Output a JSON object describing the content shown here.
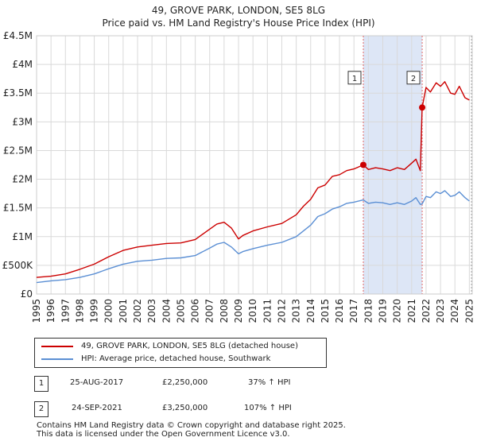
{
  "header": {
    "title_line1": "49, GROVE PARK, LONDON, SE5 8LG",
    "title_line2": "Price paid vs. HM Land Registry's House Price Index (HPI)"
  },
  "colors": {
    "property": "#cc0000",
    "hpi": "#5b8fd4",
    "shade": "#dde6f6",
    "sale_marker": "#cc0000"
  },
  "chart_data": {
    "type": "line",
    "title": "49, GROVE PARK, LONDON, SE5 8LG — Price paid vs. HM Land Registry's House Price Index (HPI)",
    "xlabel": "",
    "ylabel": "",
    "xlim": [
      1995,
      2025.2
    ],
    "ylim": [
      0,
      4500000
    ],
    "grid": true,
    "x_ticks": [
      "1995",
      "1996",
      "1997",
      "1998",
      "1999",
      "2000",
      "2001",
      "2002",
      "2003",
      "2004",
      "2005",
      "2006",
      "2007",
      "2008",
      "2009",
      "2010",
      "2011",
      "2012",
      "2013",
      "2014",
      "2015",
      "2016",
      "2017",
      "2018",
      "2019",
      "2020",
      "2021",
      "2022",
      "2023",
      "2024",
      "2025"
    ],
    "y_ticks": [
      {
        "value": 0,
        "label": "£0"
      },
      {
        "value": 500000,
        "label": "£500K"
      },
      {
        "value": 1000000,
        "label": "£1M"
      },
      {
        "value": 1500000,
        "label": "£1.5M"
      },
      {
        "value": 2000000,
        "label": "£2M"
      },
      {
        "value": 2500000,
        "label": "£2.5M"
      },
      {
        "value": 3000000,
        "label": "£3M"
      },
      {
        "value": 3500000,
        "label": "£3.5M"
      },
      {
        "value": 4000000,
        "label": "£4M"
      },
      {
        "value": 4500000,
        "label": "£4.5M"
      }
    ],
    "shaded_region": {
      "x_start": 2017.65,
      "x_end": 2021.73
    },
    "series": [
      {
        "name": "49, GROVE PARK, LONDON, SE5 8LG (detached house)",
        "x": [
          1995,
          1996,
          1997,
          1998,
          1999,
          2000,
          2001,
          2002,
          2003,
          2004,
          2005,
          2006,
          2007,
          2007.5,
          2008,
          2008.5,
          2009,
          2009.3,
          2010,
          2011,
          2012,
          2013,
          2013.5,
          2014,
          2014.5,
          2015,
          2015.5,
          2016,
          2016.5,
          2017,
          2017.65,
          2018,
          2018.5,
          2019,
          2019.5,
          2020,
          2020.5,
          2021,
          2021.3,
          2021.6,
          2021.73,
          2022,
          2022.3,
          2022.7,
          2023,
          2023.3,
          2023.7,
          2024,
          2024.3,
          2024.7,
          2025
        ],
        "values": [
          290000,
          310000,
          350000,
          430000,
          520000,
          650000,
          760000,
          820000,
          850000,
          880000,
          890000,
          950000,
          1130000,
          1220000,
          1250000,
          1150000,
          960000,
          1020000,
          1100000,
          1170000,
          1230000,
          1380000,
          1530000,
          1650000,
          1850000,
          1900000,
          2050000,
          2080000,
          2150000,
          2180000,
          2250000,
          2170000,
          2200000,
          2180000,
          2150000,
          2200000,
          2170000,
          2280000,
          2350000,
          2150000,
          3250000,
          3600000,
          3520000,
          3680000,
          3620000,
          3700000,
          3500000,
          3480000,
          3620000,
          3420000,
          3380000
        ]
      },
      {
        "name": "HPI: Average price, detached house, Southwark",
        "x": [
          1995,
          1996,
          1997,
          1998,
          1999,
          2000,
          2001,
          2002,
          2003,
          2004,
          2005,
          2006,
          2007,
          2007.5,
          2008,
          2008.5,
          2009,
          2009.3,
          2010,
          2011,
          2012,
          2013,
          2013.5,
          2014,
          2014.5,
          2015,
          2015.5,
          2016,
          2016.5,
          2017,
          2017.65,
          2018,
          2018.5,
          2019,
          2019.5,
          2020,
          2020.5,
          2021,
          2021.3,
          2021.6,
          2021.73,
          2022,
          2022.3,
          2022.7,
          2023,
          2023.3,
          2023.7,
          2024,
          2024.3,
          2024.7,
          2025
        ],
        "values": [
          200000,
          230000,
          250000,
          290000,
          350000,
          440000,
          520000,
          570000,
          590000,
          620000,
          630000,
          670000,
          800000,
          870000,
          900000,
          820000,
          700000,
          740000,
          790000,
          850000,
          900000,
          1000000,
          1100000,
          1200000,
          1350000,
          1400000,
          1480000,
          1520000,
          1580000,
          1600000,
          1640000,
          1580000,
          1600000,
          1590000,
          1560000,
          1590000,
          1560000,
          1620000,
          1680000,
          1560000,
          1570000,
          1700000,
          1680000,
          1780000,
          1750000,
          1800000,
          1700000,
          1720000,
          1780000,
          1680000,
          1620000
        ]
      }
    ],
    "annotations": [
      {
        "label": "1",
        "x": 2017.65,
        "y": 2250000
      },
      {
        "label": "2",
        "x": 2021.73,
        "y": 3250000
      }
    ]
  },
  "legend": {
    "property_label": "49, GROVE PARK, LONDON, SE5 8LG (detached house)",
    "hpi_label": "HPI: Average price, detached house, Southwark"
  },
  "sales": [
    {
      "num": "1",
      "date": "25-AUG-2017",
      "price": "£2,250,000",
      "hpi": "37% ↑ HPI"
    },
    {
      "num": "2",
      "date": "24-SEP-2021",
      "price": "£3,250,000",
      "hpi": "107% ↑ HPI"
    }
  ],
  "footer": {
    "line1": "Contains HM Land Registry data © Crown copyright and database right 2025.",
    "line2": "This data is licensed under the Open Government Licence v3.0."
  }
}
